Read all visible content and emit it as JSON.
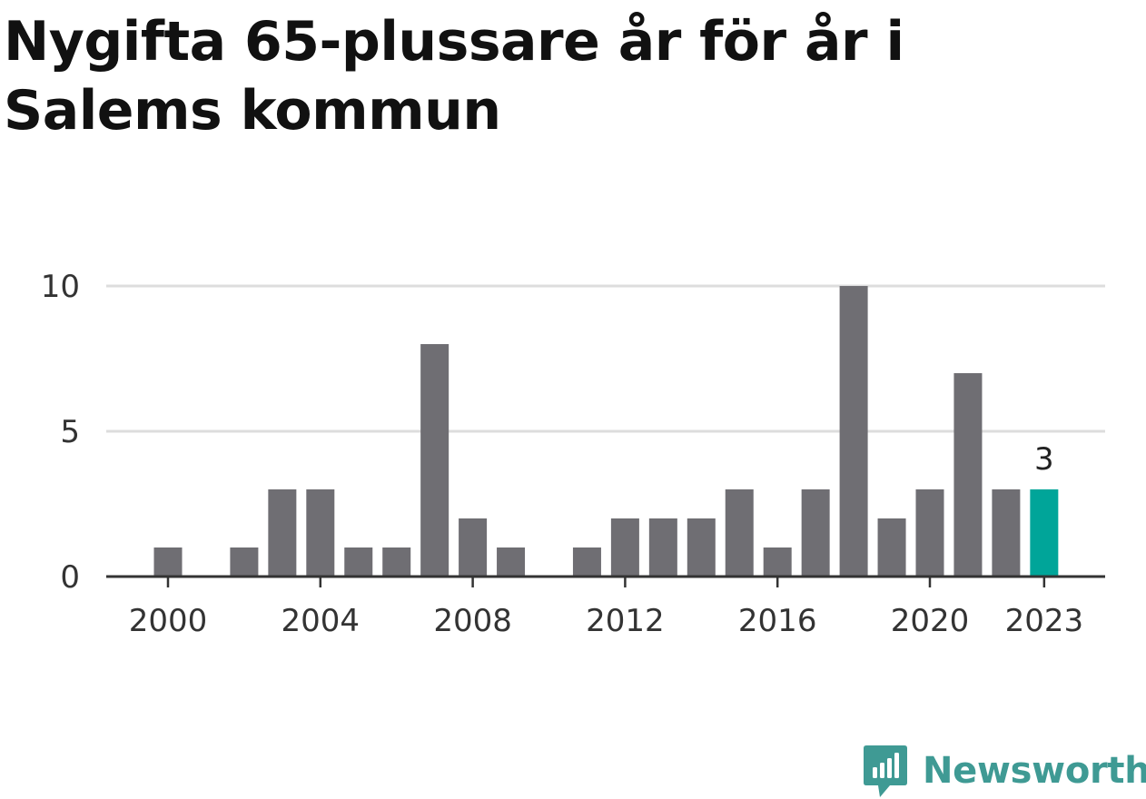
{
  "title": "Nygifta 65-plussare år för år i Salems kommun",
  "brand": {
    "name": "Newsworthy",
    "icon": "newsworthy-logo-icon",
    "color": "#3f9a94"
  },
  "chart_data": {
    "type": "bar",
    "title": "Nygifta 65-plussare år för år i Salems kommun",
    "xlabel": "",
    "ylabel": "",
    "x": [
      2000,
      2001,
      2002,
      2003,
      2004,
      2005,
      2006,
      2007,
      2008,
      2009,
      2010,
      2011,
      2012,
      2013,
      2014,
      2015,
      2016,
      2017,
      2018,
      2019,
      2020,
      2021,
      2022,
      2023
    ],
    "values": [
      1,
      0,
      1,
      3,
      3,
      1,
      1,
      8,
      2,
      1,
      0,
      1,
      2,
      2,
      2,
      3,
      1,
      3,
      10,
      2,
      3,
      7,
      3,
      3
    ],
    "x_tick_labels": [
      "2000",
      "2004",
      "2008",
      "2012",
      "2016",
      "2020",
      "2023"
    ],
    "y_ticks": [
      0,
      5,
      10
    ],
    "y_tick_labels": [
      "0",
      "5",
      "10"
    ],
    "ylim": [
      0,
      10
    ],
    "grid": true,
    "highlight": {
      "x": 2023,
      "label": "3"
    },
    "colors": {
      "bar": "#6f6e73",
      "highlight": "#00a599",
      "grid": "#dddddd",
      "axis": "#333333"
    }
  }
}
